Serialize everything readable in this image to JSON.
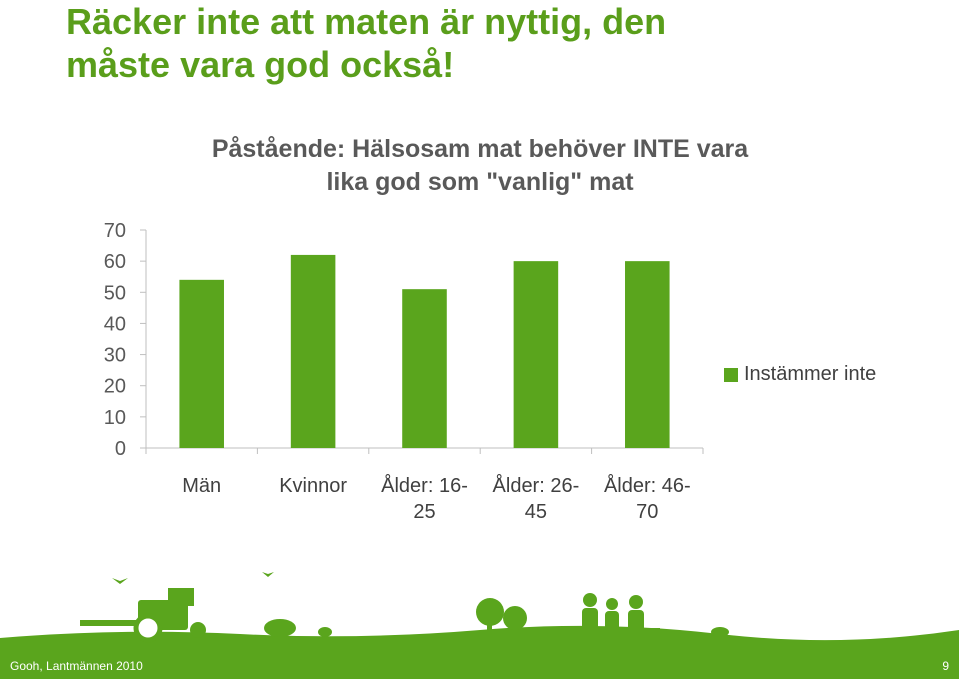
{
  "slide": {
    "title_line1": "Räcker inte att maten är nyttig, den",
    "title_line2": "måste vara god också!"
  },
  "chart_data": {
    "type": "bar",
    "title_line1": "Påstående: Hälsosam mat behöver INTE vara",
    "title_line2": "lika god som \"vanlig\" mat",
    "categories": [
      [
        "Män"
      ],
      [
        "Kvinnor"
      ],
      [
        "Ålder: 16-",
        "25"
      ],
      [
        "Ålder: 26-",
        "45"
      ],
      [
        "Ålder: 46-",
        "70"
      ]
    ],
    "series": [
      {
        "name": "Instämmer inte",
        "values": [
          54,
          62,
          51,
          60,
          60
        ]
      }
    ],
    "ylim": [
      0,
      70
    ],
    "yticks": [
      0,
      10,
      20,
      30,
      40,
      50,
      60,
      70
    ],
    "grid": false,
    "legend_position": "right",
    "bar_color": "#5aa51d"
  },
  "footer": {
    "source": "Gooh, Lantmännen 2010",
    "page_number": "9"
  },
  "colors": {
    "brand_green": "#5aa51d",
    "title_green": "#5a9e1b"
  }
}
